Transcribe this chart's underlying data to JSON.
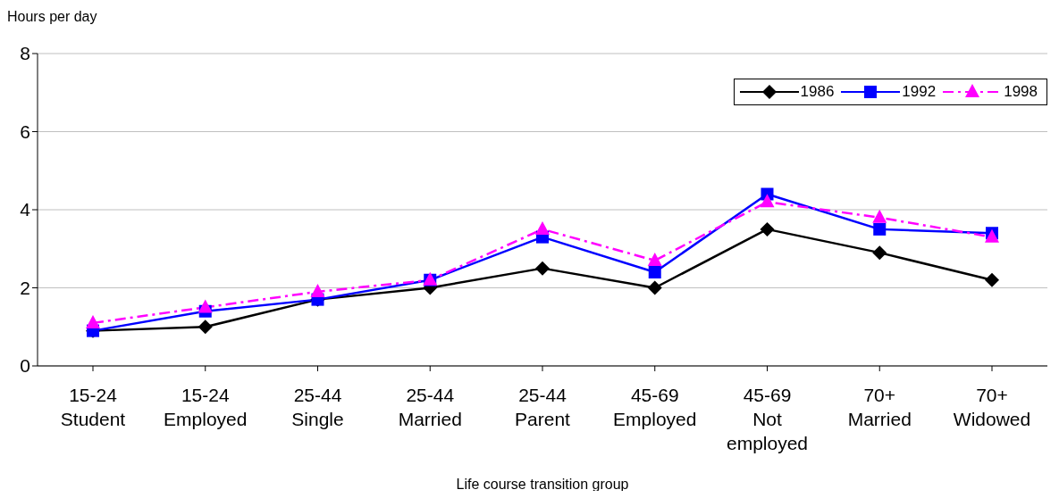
{
  "chart_data": {
    "type": "line",
    "ylabel": "Hours per day",
    "xlabel": "Life course transition group",
    "categories": [
      "15-24\nStudent",
      "15-24\nEmployed",
      "25-44\nSingle",
      "25-44\nMarried",
      "25-44\nParent",
      "45-69\nEmployed",
      "45-69\nNot\nemployed",
      "70+\nMarried",
      "70+\nWidowed"
    ],
    "series": [
      {
        "name": "1986",
        "color": "#000000",
        "marker": "diamond",
        "line_style": "solid",
        "values": [
          0.9,
          1.0,
          1.7,
          2.0,
          2.5,
          2.0,
          3.5,
          2.9,
          2.2
        ]
      },
      {
        "name": "1992",
        "color": "#0000ff",
        "marker": "square",
        "line_style": "solid",
        "values": [
          0.9,
          1.4,
          1.7,
          2.2,
          3.3,
          2.4,
          4.4,
          3.5,
          3.4
        ]
      },
      {
        "name": "1998",
        "color": "#ff00ff",
        "marker": "triangle",
        "line_style": "dashdot",
        "values": [
          1.1,
          1.5,
          1.9,
          2.2,
          3.5,
          2.7,
          4.2,
          3.8,
          3.3
        ]
      }
    ],
    "ylim": [
      0,
      8
    ],
    "yticks": [
      0,
      2,
      4,
      6,
      8
    ],
    "grid": "y",
    "legend": "top right"
  }
}
